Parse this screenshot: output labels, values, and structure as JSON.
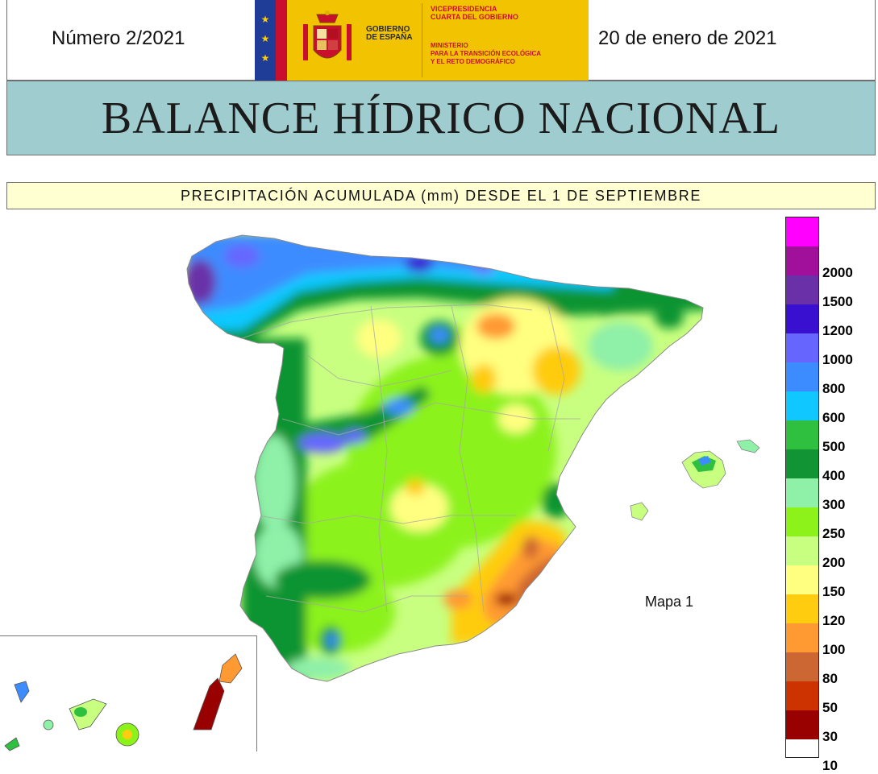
{
  "header": {
    "issue_number": "Número 2/2021",
    "date": "20 de enero de 2021",
    "logo": {
      "gobierno_line1": "GOBIERNO",
      "gobierno_line2": "DE ESPAÑA",
      "vicepresidencia_line1": "VICEPRESIDENCIA",
      "vicepresidencia_line2": "CUARTA DEL GOBIERNO",
      "ministerio_line1": "MINISTERIO",
      "ministerio_line2": "PARA LA TRANSICIÓN ECOLÓGICA",
      "ministerio_line3": "Y EL RETO DEMOGRÁFICO"
    }
  },
  "title": "BALANCE HÍDRICO NACIONAL",
  "subtitle": "PRECIPITACIÓN ACUMULADA (mm) DESDE EL 1 DE SEPTIEMBRE",
  "map_label": "Mapa 1",
  "legend": {
    "classes": [
      {
        "label": "",
        "color": "#ff00ff"
      },
      {
        "label": "2000",
        "color": "#a0109a"
      },
      {
        "label": "1500",
        "color": "#6a30a8"
      },
      {
        "label": "1200",
        "color": "#3a10d0"
      },
      {
        "label": "1000",
        "color": "#6666ff"
      },
      {
        "label": "800",
        "color": "#3d8cff"
      },
      {
        "label": "600",
        "color": "#10c8ff"
      },
      {
        "label": "500",
        "color": "#30c040"
      },
      {
        "label": "400",
        "color": "#119433"
      },
      {
        "label": "300",
        "color": "#8ff0a8"
      },
      {
        "label": "250",
        "color": "#8cf21a"
      },
      {
        "label": "200",
        "color": "#c8ff80"
      },
      {
        "label": "150",
        "color": "#ffff80"
      },
      {
        "label": "120",
        "color": "#ffcc10"
      },
      {
        "label": "100",
        "color": "#ff9a33"
      },
      {
        "label": "80",
        "color": "#cc6633"
      },
      {
        "label": "50",
        "color": "#cc3300"
      },
      {
        "label": "30",
        "color": "#990000"
      },
      {
        "label": "10",
        "color": ""
      }
    ]
  }
}
